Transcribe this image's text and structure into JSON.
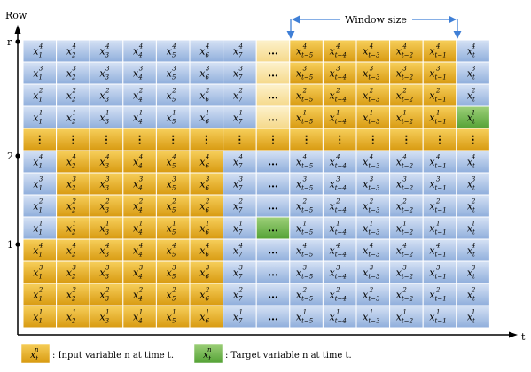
{
  "axis": {
    "y_label": "Row",
    "x_label": "t",
    "y_ticks": [
      "r",
      "2",
      "1"
    ]
  },
  "window_label": "Window size",
  "col_subs": [
    "1",
    "2",
    "3",
    "4",
    "5",
    "6",
    "7",
    "…",
    "t−5",
    "t−4",
    "t−3",
    "t−2",
    "t−1",
    "t"
  ],
  "row_sups": [
    "4",
    "3",
    "2",
    "1",
    "⋮",
    "4",
    "3",
    "2",
    "1",
    "4",
    "3",
    "2",
    "1"
  ],
  "ellipsis": "…",
  "vdots": "⋮",
  "legend": {
    "input_symbol": "x",
    "input_sup": "n",
    "input_sub": "t",
    "input_text": ": Input variable n at time t.",
    "target_symbol": "x",
    "target_sup": "n",
    "target_sub": "t",
    "target_text": ": Target variable n at time t."
  },
  "grid_states": [
    "bbbbbbblyyyyyb",
    "bbbbbbblyyyyyb",
    "bbbbbbblyyyyyb",
    "bbbbbbblyyyyyg",
    "yyyyyyyyyyyyyy",
    "byyyyybbbbbbbb",
    "byyyyybbbbbbbb",
    "byyyyybbbbbbbb",
    "byyyyybgbbbbbb",
    "yyyyyybbbbbbbb",
    "yyyyyybbbbbbbb",
    "yyyyyybbbbbbbb",
    "yyyyyybbbbbbbb"
  ],
  "grid_states_note_legend": [
    "b = blue cell",
    "y = input (orange)",
    "g = target (green)",
    "l = light"
  ],
  "colors": {
    "blue_top": "#d6e2f5",
    "blue_bottom": "#8faedc",
    "orange_top": "#f7cf5b",
    "orange_bottom": "#d89a10",
    "green_top": "#9ed07a",
    "green_bottom": "#54a235",
    "light_top": "#fdf2cc",
    "light_bottom": "#f5d98a",
    "grid_line": "#ffffff",
    "arrow": "#3f7fd6",
    "axis": "#000000"
  }
}
